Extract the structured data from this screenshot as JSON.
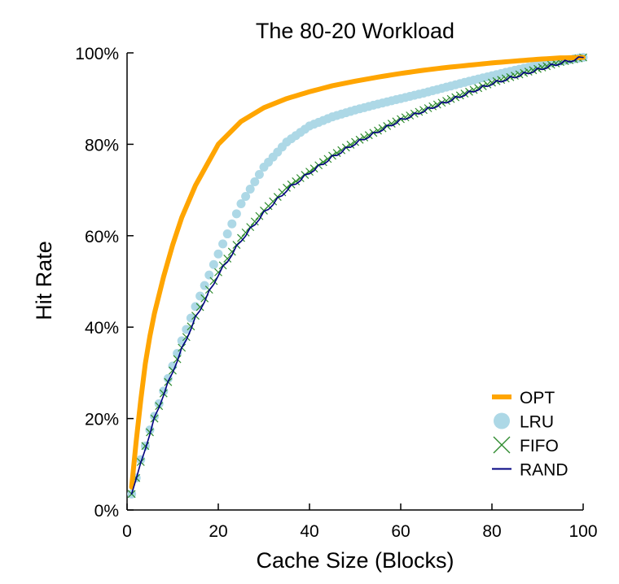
{
  "chart_data": {
    "type": "line",
    "title": "The 80-20 Workload",
    "xlabel": "Cache Size (Blocks)",
    "ylabel": "Hit Rate",
    "xlim": [
      0,
      100
    ],
    "ylim": [
      0,
      100
    ],
    "xticks": [
      0,
      20,
      40,
      60,
      80,
      100
    ],
    "xtick_labels": [
      "0",
      "20",
      "40",
      "60",
      "80",
      "100"
    ],
    "yticks": [
      0,
      20,
      40,
      60,
      80,
      100
    ],
    "ytick_labels": [
      "0%",
      "20%",
      "40%",
      "60%",
      "80%",
      "100%"
    ],
    "grid": false,
    "legend_position": "bottom-right",
    "x": [
      1,
      2,
      3,
      4,
      5,
      6,
      8,
      10,
      12,
      15,
      20,
      25,
      30,
      35,
      40,
      45,
      50,
      55,
      60,
      65,
      70,
      75,
      80,
      85,
      90,
      95,
      100
    ],
    "series": [
      {
        "name": "OPT",
        "color": "#ffa500",
        "marker": "line-thick",
        "values": [
          5,
          15,
          24,
          32,
          38,
          43,
          51,
          58,
          64,
          71,
          80,
          85,
          88,
          90,
          91.5,
          92.8,
          93.8,
          94.7,
          95.5,
          96.2,
          96.8,
          97.3,
          97.8,
          98.2,
          98.6,
          98.9,
          99
        ]
      },
      {
        "name": "LRU",
        "color": "#add8e6",
        "marker": "circle",
        "values": [
          3.5,
          7,
          11,
          14,
          17.5,
          20.5,
          26,
          31.5,
          37,
          44.5,
          56,
          67,
          75,
          80.5,
          84,
          86,
          87.5,
          88.8,
          90,
          91.2,
          92.5,
          93.8,
          95,
          96.2,
          97.3,
          98.2,
          99
        ]
      },
      {
        "name": "FIFO",
        "color": "#2e8b2e",
        "marker": "x",
        "values": [
          3.5,
          7,
          10.5,
          14,
          17,
          20,
          25.5,
          30.5,
          35.5,
          42.5,
          52,
          59.5,
          65.5,
          70.5,
          74,
          77.5,
          80.5,
          83,
          85.5,
          87.5,
          89.5,
          91.5,
          93.5,
          95,
          96.5,
          98,
          99
        ]
      },
      {
        "name": "RAND",
        "color": "#000080",
        "marker": "line",
        "values": [
          3.5,
          6.8,
          10,
          13.5,
          16.8,
          20,
          25.3,
          30.3,
          35.2,
          42,
          51.5,
          59,
          65,
          70,
          73.8,
          77.2,
          80.2,
          82.8,
          85.3,
          87.3,
          89.3,
          91.3,
          93.3,
          94.8,
          96.3,
          97.8,
          99
        ]
      }
    ]
  }
}
